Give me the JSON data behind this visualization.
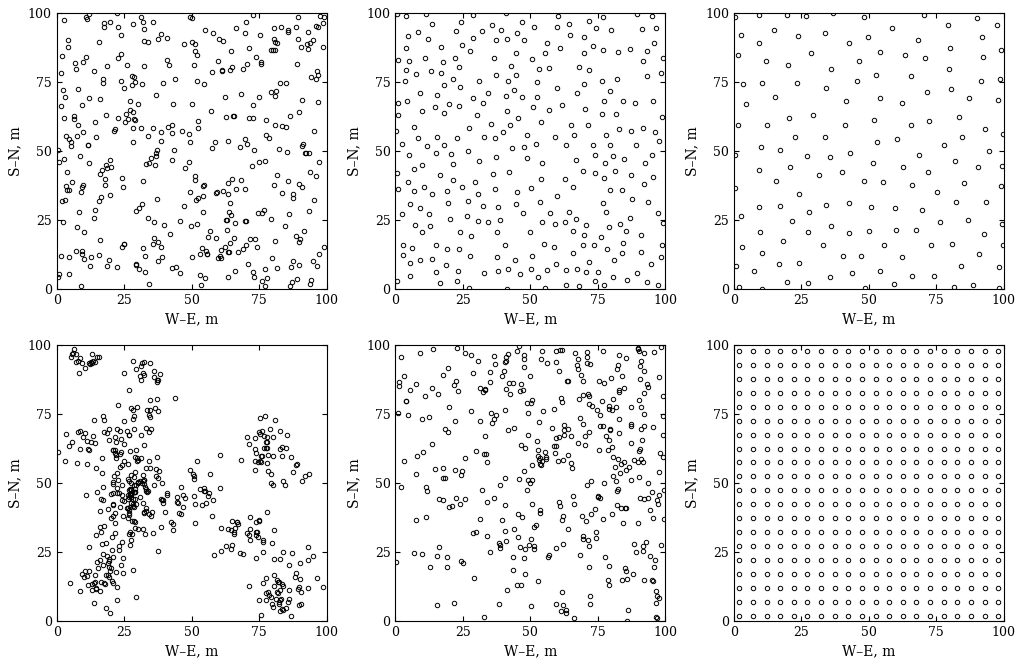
{
  "xlim": [
    0,
    100
  ],
  "ylim": [
    0,
    100
  ],
  "xlabel": "W–E, m",
  "ylabel": "S–N, m",
  "xticks": [
    0,
    25,
    50,
    75,
    100
  ],
  "yticks": [
    0,
    25,
    50,
    75,
    100
  ],
  "marker_size": 3.2,
  "facecolor": "none",
  "edgecolor": "black",
  "linewidth": 0.7,
  "background": "white",
  "figsize": [
    10.24,
    6.67
  ],
  "dpi": 100,
  "n_regular_x": 20,
  "n_regular_y": 20
}
